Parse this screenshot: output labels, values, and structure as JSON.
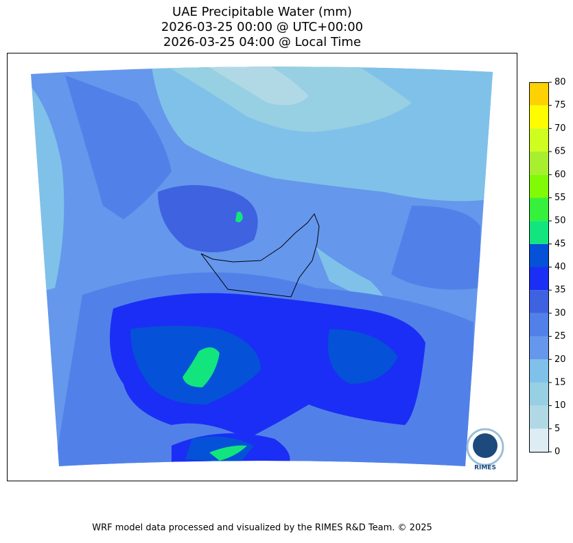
{
  "chart_data": {
    "type": "map",
    "title": "UAE Precipitable Water (mm)",
    "subtitle_utc": "2026-03-25 00:00 @ UTC+00:00",
    "subtitle_local": "2026-03-25 04:00 @ Local Time",
    "colorbar": {
      "ticks": [
        0,
        5,
        10,
        15,
        20,
        25,
        30,
        35,
        40,
        45,
        50,
        55,
        60,
        65,
        70,
        75,
        80
      ],
      "colors": [
        "#deedf3",
        "#b1d9e5",
        "#97cfe3",
        "#7fc1e9",
        "#6597ec",
        "#5181e8",
        "#3f62e0",
        "#1b2ef5",
        "#0551d8",
        "#12e57e",
        "#35f13c",
        "#80fb05",
        "#a8ef30",
        "#cffd1f",
        "#fdfd00",
        "#fdd102"
      ]
    },
    "logo_text": "RIMES",
    "footer": "WRF model data processed and visualized by the RIMES R&D Team. © 2025"
  }
}
